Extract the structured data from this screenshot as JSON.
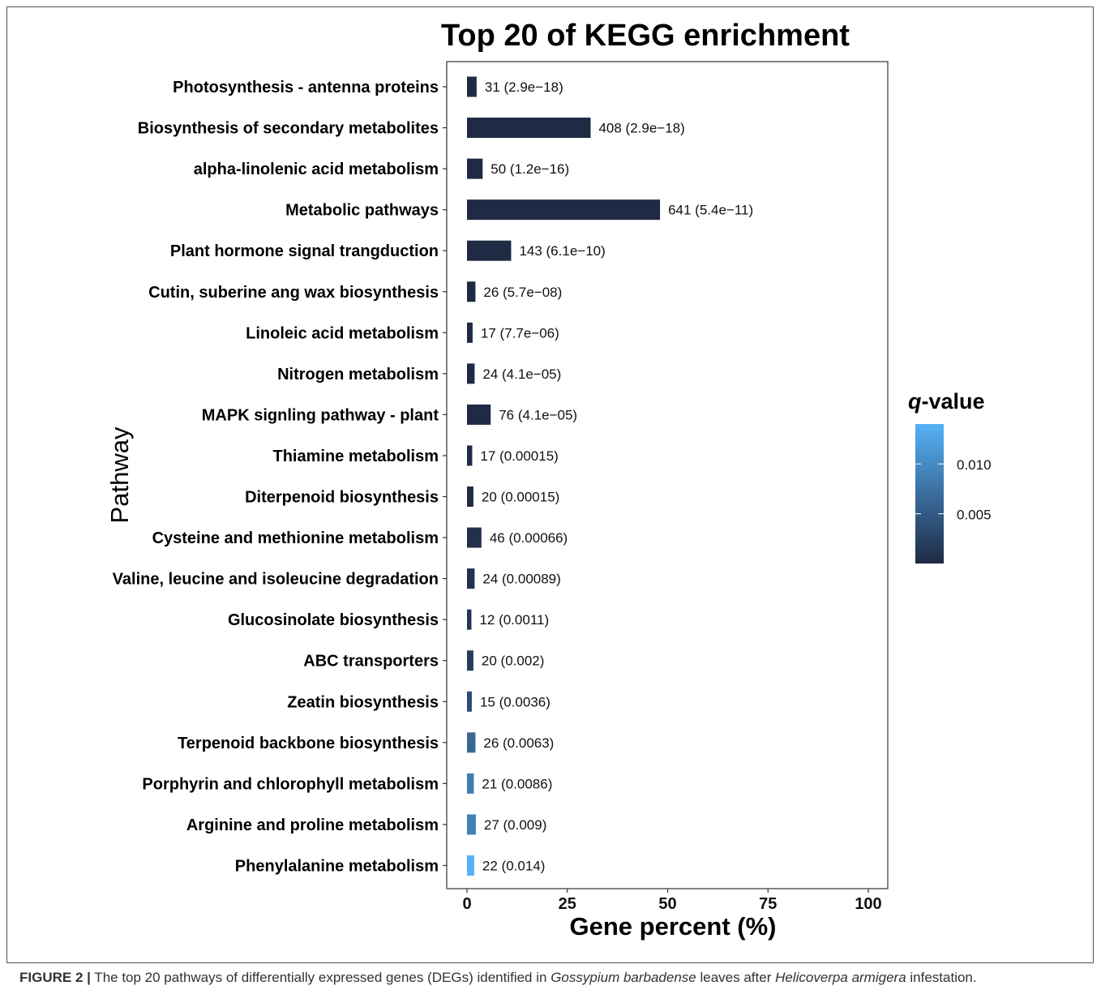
{
  "chart_data": {
    "type": "bar",
    "orientation": "horizontal",
    "title": "Top 20 of KEGG enrichment",
    "xlabel": "Gene percent (%)",
    "ylabel": "Pathway",
    "xlim": [
      0,
      100
    ],
    "xticks": [
      "0",
      "25",
      "50",
      "75",
      "100"
    ],
    "grid": false,
    "legend": {
      "title_italic": "q",
      "title_rest": "-value",
      "position": "right",
      "ticks": [
        "0.010",
        "0.005"
      ],
      "tick_values": [
        0.01,
        0.005
      ],
      "range": [
        1e-05,
        0.014
      ],
      "color_low": "#1f2a44",
      "color_high": "#56b1f7"
    },
    "categories": [
      "Photosynthesis - antenna proteins",
      "Biosynthesis of secondary metabolites",
      "alpha-linolenic acid metabolism",
      "Metabolic pathways",
      "Plant hormone signal trangduction",
      "Cutin, suberine ang wax biosynthesis",
      "Linoleic acid metabolism",
      "Nitrogen metabolism",
      "MAPK signling pathway - plant",
      "Thiamine metabolism",
      "Diterpenoid biosynthesis",
      "Cysteine and methionine metabolism",
      "Valine, leucine and isoleucine degradation",
      "Glucosinolate biosynthesis",
      "ABC transporters",
      "Zeatin biosynthesis",
      "Terpenoid backbone biosynthesis",
      "Porphyrin and chlorophyll metabolism",
      "Arginine and proline metabolism",
      "Phenylalanine metabolism"
    ],
    "values": [
      2.4,
      30.8,
      3.9,
      48.1,
      11.0,
      2.1,
      1.4,
      1.9,
      5.9,
      1.3,
      1.6,
      3.6,
      1.9,
      1.1,
      1.6,
      1.2,
      2.1,
      1.7,
      2.2,
      1.8
    ],
    "gene_counts": [
      31,
      408,
      50,
      641,
      143,
      26,
      17,
      24,
      76,
      17,
      20,
      46,
      24,
      12,
      20,
      15,
      26,
      21,
      27,
      22
    ],
    "q_values": [
      2.9e-18,
      2.9e-18,
      1.2e-16,
      5.4e-11,
      6.1e-10,
      5.7e-08,
      7.7e-06,
      4.1e-05,
      4.1e-05,
      0.00015,
      0.00015,
      0.00066,
      0.00089,
      0.0011,
      0.002,
      0.0036,
      0.0063,
      0.0086,
      0.009,
      0.014
    ],
    "bar_labels": [
      "31 (2.9e−18)",
      "408 (2.9e−18)",
      "50 (1.2e−16)",
      "641 (5.4e−11)",
      "143 (6.1e−10)",
      "26 (5.7e−08)",
      "17 (7.7e−06)",
      "24 (4.1e−05)",
      "76 (4.1e−05)",
      "17 (0.00015)",
      "20 (0.00015)",
      "46 (0.00066)",
      "24 (0.00089)",
      "12 (0.0011)",
      "20 (0.002)",
      "15 (0.0036)",
      "26 (0.0063)",
      "21 (0.0086)",
      "27 (0.009)",
      "22 (0.014)"
    ]
  },
  "caption": {
    "label": "FIGURE 2 |",
    "text_1": " The top 20 pathways of differentially expressed genes (DEGs) identified in ",
    "species_1": "Gossypium barbadense",
    "text_2": " leaves after ",
    "species_2": "Helicoverpa armigera",
    "text_3": " infestation."
  }
}
